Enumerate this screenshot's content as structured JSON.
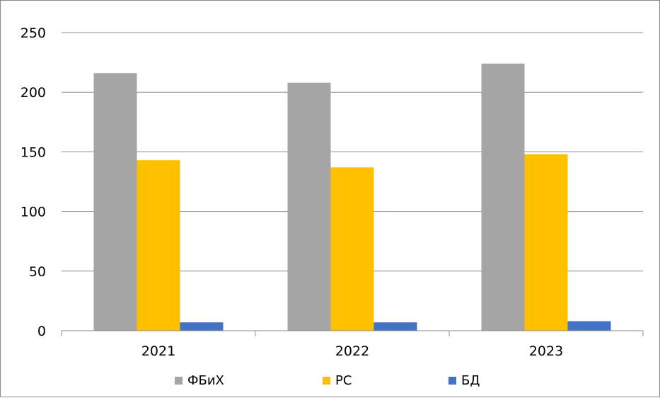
{
  "chart_data": {
    "type": "bar",
    "categories": [
      "2021",
      "2022",
      "2023"
    ],
    "series": [
      {
        "name": "ФБиХ",
        "color": "#a5a5a5",
        "values": [
          216,
          208,
          224
        ]
      },
      {
        "name": "РС",
        "color": "#ffc000",
        "values": [
          143,
          137,
          148
        ]
      },
      {
        "name": "БД",
        "color": "#4472c4",
        "values": [
          7,
          7,
          8
        ]
      }
    ],
    "title": "",
    "xlabel": "",
    "ylabel": "",
    "ylim": [
      0,
      250
    ],
    "yticks": [
      "0",
      "50",
      "100",
      "150",
      "200",
      "250"
    ],
    "grid": true,
    "legend": "bottom"
  }
}
